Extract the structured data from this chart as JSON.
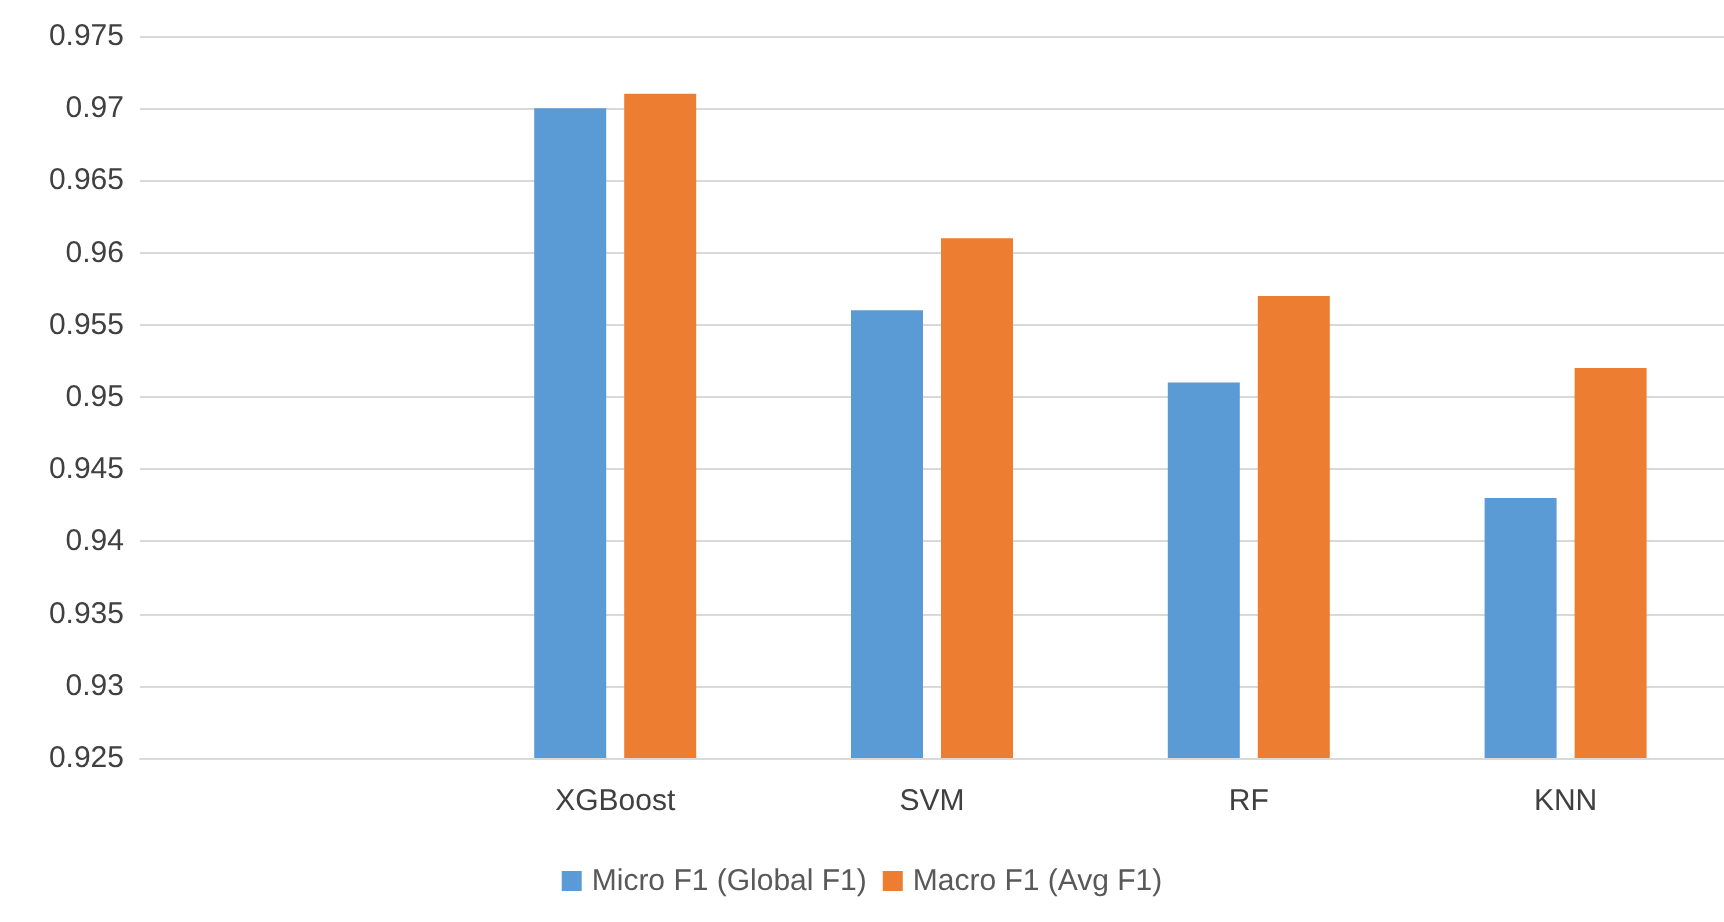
{
  "chart_data": {
    "type": "bar",
    "categories": [
      null,
      "XGBoost",
      "SVM",
      "RF",
      "KNN"
    ],
    "series": [
      {
        "name": "Micro F1 (Global F1)",
        "color": "#5b9bd5",
        "values": [
          null,
          0.97,
          0.956,
          0.951,
          0.943
        ]
      },
      {
        "name": "Macro F1 (Avg F1)",
        "color": "#ed7d31",
        "values": [
          null,
          0.971,
          0.961,
          0.957,
          0.952
        ]
      }
    ],
    "ylim": [
      0.925,
      0.975
    ],
    "yticks": [
      0.925,
      0.93,
      0.935,
      0.94,
      0.945,
      0.95,
      0.955,
      0.96,
      0.965,
      0.97,
      0.975
    ],
    "grid": "y",
    "legend": "bottom"
  }
}
